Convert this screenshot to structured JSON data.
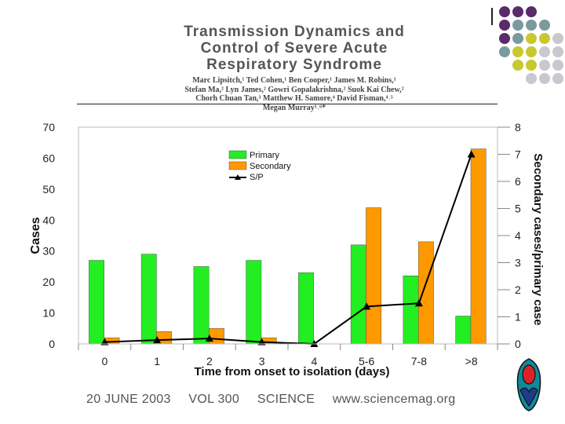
{
  "header": {
    "title_lines": [
      "Transmission Dynamics and",
      "Control of Severe Acute",
      "Respiratory Syndrome"
    ],
    "author_lines": [
      "Marc Lipsitch,¹ Ted Cohen,¹ Ben Cooper,¹ James M. Robins,¹",
      "Stefan Ma,² Lyn James,² Gowri Gopalakrishna,² Suok Kai Chew,²",
      "Chorh Chuan Tan,³ Matthew H. Samore,⁴ David Fisman,⁴˒⁵",
      "Megan Murray¹˒⁶*"
    ]
  },
  "footer": {
    "date": "20 JUNE 2003",
    "volume": "VOL 300",
    "journal": "SCIENCE",
    "url": "www.sciencemag.org"
  },
  "colors": {
    "primary_bar": "#22ee22",
    "secondary_bar": "#ff9900",
    "sp_line": "#000000",
    "dot_purple": "#5a2a6a",
    "dot_teal": "#7a9aa0",
    "dot_yellow": "#c8c830",
    "dot_grey": "#c8c8d0",
    "logo_teal": "#0f8a9a",
    "logo_red": "#d9232a",
    "logo_blue": "#1f3c8a"
  },
  "chart_data": {
    "type": "bar",
    "title": "",
    "xlabel": "Time from onset to isolation (days)",
    "ylabel": "Cases",
    "y2label": "Secondary cases/primary case",
    "categories": [
      "0",
      "1",
      "2",
      "3",
      "4",
      "5-6",
      "7-8",
      ">8"
    ],
    "ylim": [
      0,
      70
    ],
    "yticks": [
      "0",
      "10",
      "20",
      "30",
      "40",
      "50",
      "60",
      "70"
    ],
    "y2lim": [
      0,
      8
    ],
    "y2ticks": [
      "0",
      "1",
      "2",
      "3",
      "4",
      "5",
      "6",
      "7",
      "8"
    ],
    "legend_position": "top-left",
    "series": [
      {
        "name": "Primary",
        "kind": "bar",
        "axis": "left",
        "values": [
          27,
          29,
          25,
          27,
          23,
          32,
          22,
          9
        ]
      },
      {
        "name": "Secondary",
        "kind": "bar",
        "axis": "left",
        "values": [
          2,
          4,
          5,
          2,
          0,
          44,
          33,
          63
        ]
      },
      {
        "name": "S/P",
        "kind": "line",
        "axis": "right",
        "values": [
          0.07,
          0.14,
          0.2,
          0.07,
          0,
          1.38,
          1.5,
          7.0
        ]
      }
    ]
  }
}
